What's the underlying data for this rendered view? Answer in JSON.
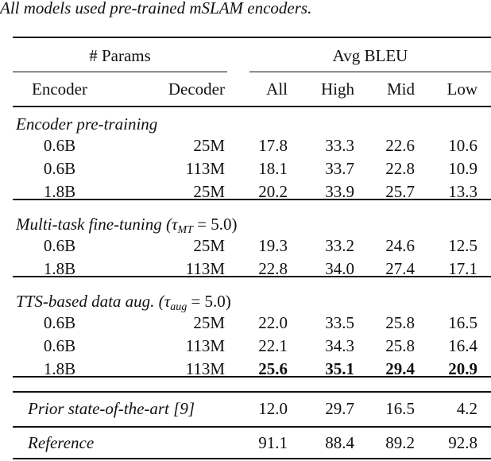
{
  "caption": "All models used pre-trained mSLAM encoders.",
  "header": {
    "group_params": "# Params",
    "group_bleu": "Avg BLEU",
    "columns": [
      "Encoder",
      "Decoder",
      "All",
      "High",
      "Mid",
      "Low"
    ]
  },
  "sections": [
    {
      "title": "Encoder pre-training",
      "title_math": "",
      "rows": [
        {
          "cells": [
            "0.6B",
            "25M",
            "17.8",
            "33.3",
            "22.6",
            "10.6"
          ],
          "bold": false
        },
        {
          "cells": [
            "0.6B",
            "113M",
            "18.1",
            "33.7",
            "22.8",
            "10.9"
          ],
          "bold": false
        },
        {
          "cells": [
            "1.8B",
            "25M",
            "20.2",
            "33.9",
            "25.7",
            "13.3"
          ],
          "bold": false
        }
      ]
    },
    {
      "title": "Multi-task fine-tuning (",
      "tau": "τ",
      "sub": "MT",
      "title_math": " = 5.0)",
      "rows": [
        {
          "cells": [
            "0.6B",
            "25M",
            "19.3",
            "33.2",
            "24.6",
            "12.5"
          ],
          "bold": false
        },
        {
          "cells": [
            "1.8B",
            "113M",
            "22.8",
            "34.0",
            "27.4",
            "17.1"
          ],
          "bold": false
        }
      ]
    },
    {
      "title": "TTS-based data aug. (",
      "tau": "τ",
      "sub": "aug",
      "title_math": " = 5.0)",
      "rows": [
        {
          "cells": [
            "0.6B",
            "25M",
            "22.0",
            "33.5",
            "25.8",
            "16.5"
          ],
          "bold": false
        },
        {
          "cells": [
            "0.6B",
            "113M",
            "22.1",
            "34.3",
            "25.8",
            "16.4"
          ],
          "bold": false
        },
        {
          "cells": [
            "1.8B",
            "113M",
            "25.6",
            "35.1",
            "29.4",
            "20.9"
          ],
          "bold": true
        }
      ]
    }
  ],
  "prior": {
    "label": "Prior state-of-the-art [9]",
    "cells": [
      "12.0",
      "29.7",
      "16.5",
      "4.2"
    ]
  },
  "reference": {
    "label": "Reference",
    "cells": [
      "91.1",
      "88.4",
      "89.2",
      "92.8"
    ]
  }
}
